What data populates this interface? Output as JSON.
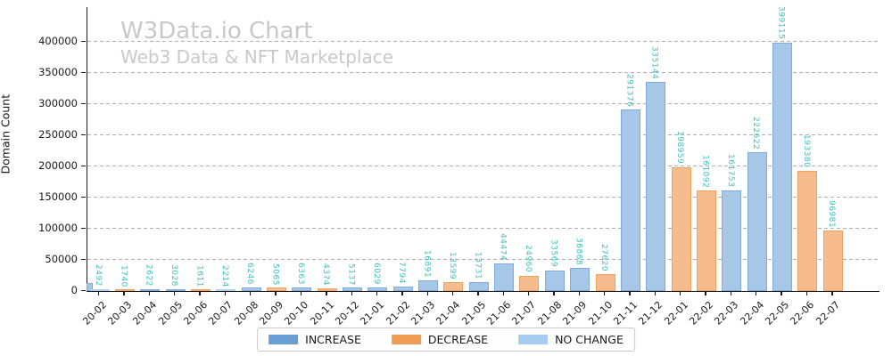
{
  "title": "W3Data.io Chart",
  "subtitle": "Web3 Data & NFT Marketplace",
  "y_axis": {
    "label": "Domain Count",
    "ticks": [
      0,
      50000,
      100000,
      150000,
      200000,
      250000,
      300000,
      350000,
      400000
    ]
  },
  "legend": {
    "items": [
      {
        "label": "INCREASE",
        "key": "increase"
      },
      {
        "label": "DECREASE",
        "key": "decrease"
      },
      {
        "label": "NO CHANGE",
        "key": "no_change"
      }
    ]
  },
  "colors": {
    "increase": {
      "fill": "#a7c7e9",
      "edge": "#7faad9",
      "legend": "#6b9fd4"
    },
    "decrease": {
      "fill": "#f6bc8d",
      "edge": "#f0a263",
      "legend": "#ef9c54"
    },
    "no_change": {
      "fill": "#c3def7",
      "edge": "#adcff2",
      "legend": "#a6ccf0"
    },
    "value_label": "#3fc0c0",
    "grid": "#b0b0b0",
    "watermark": "#c8c8c8"
  },
  "chart_data": {
    "type": "bar",
    "title": "W3Data.io Chart",
    "subtitle": "Web3 Data & NFT Marketplace",
    "xlabel": "",
    "ylabel": "Domain Count",
    "ylim": [
      0,
      440000
    ],
    "yticks": [
      0,
      50000,
      100000,
      150000,
      200000,
      250000,
      300000,
      350000,
      400000
    ],
    "grid": "horizontal-dashed",
    "legend_position": "bottom-center",
    "legend_entries": [
      "INCREASE",
      "DECREASE",
      "NO CHANGE"
    ],
    "categories": [
      "20-02",
      "20-03",
      "20-04",
      "20-05",
      "20-06",
      "20-07",
      "20-08",
      "20-09",
      "20-10",
      "20-11",
      "20-12",
      "21-01",
      "21-02",
      "21-03",
      "21-04",
      "21-05",
      "21-06",
      "21-07",
      "21-08",
      "21-09",
      "21-10",
      "21-11",
      "21-12",
      "22-01",
      "22-02",
      "22-03",
      "22-04",
      "22-05",
      "22-06",
      "22-07"
    ],
    "values": [
      2492,
      1740,
      2622,
      3028,
      1611,
      2214,
      6246,
      5065,
      6363,
      4374,
      5137,
      6029,
      7794,
      16891,
      13599,
      13731,
      44474,
      24960,
      33569,
      36868,
      27620,
      291376,
      335144,
      198959,
      161092,
      161753,
      222622,
      399115,
      193380,
      96981
    ],
    "statuses": [
      "no_change",
      "decrease",
      "increase",
      "increase",
      "decrease",
      "no_change",
      "increase",
      "decrease",
      "increase",
      "decrease",
      "increase",
      "increase",
      "increase",
      "increase",
      "decrease",
      "increase",
      "increase",
      "decrease",
      "increase",
      "increase",
      "decrease",
      "increase",
      "increase",
      "decrease",
      "decrease",
      "increase",
      "increase",
      "increase",
      "decrease",
      "decrease"
    ]
  }
}
